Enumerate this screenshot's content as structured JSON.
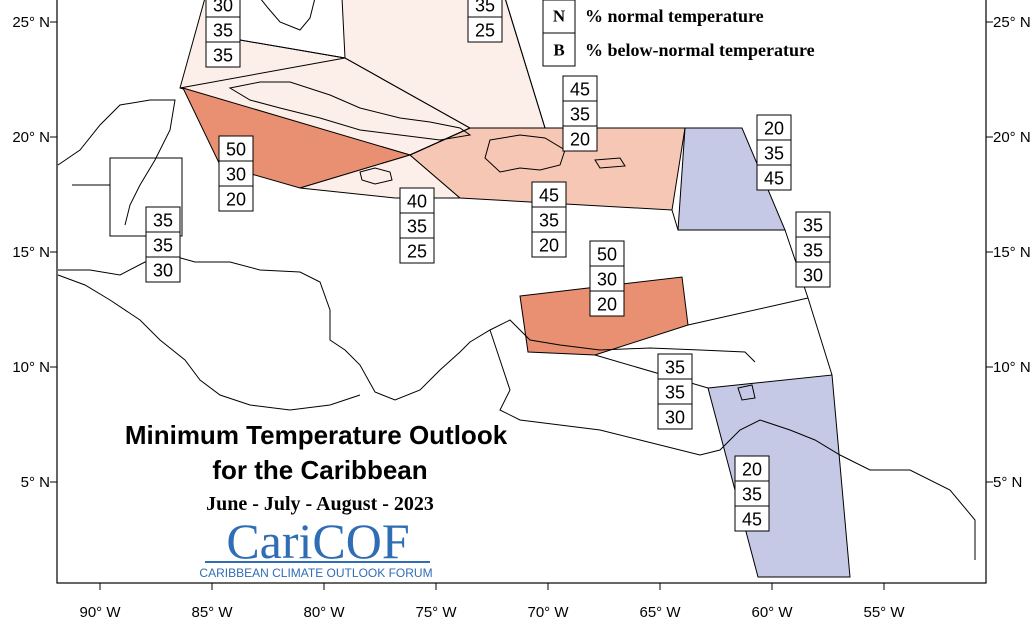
{
  "title_line1": "Minimum Temperature Outlook",
  "title_line2": "for the Caribbean",
  "period": "June - July - August - 2023",
  "logo": {
    "name": "CariCOF",
    "tagline": "CARIBBEAN CLIMATE OUTLOOK FORUM"
  },
  "legend": [
    {
      "key": "N",
      "text": "% normal temperature"
    },
    {
      "key": "B",
      "text": "% below-normal temperature"
    }
  ],
  "lat_labels": [
    "25° N",
    "20° N",
    "15° N",
    "10° N",
    "5° N"
  ],
  "lon_labels": [
    "90° W",
    "85° W",
    "80° W",
    "75° W",
    "70° W",
    "65° W",
    "60° W",
    "55° W"
  ],
  "colors": {
    "above_50": "#e98f72",
    "above_45": "#f6c7b4",
    "above_40": "#fbe2d8",
    "above_35": "#fcefe9",
    "below_45": "#c5c9e5",
    "outline": "#000000"
  },
  "regions": [
    {
      "name": "bahamas-north",
      "values": [
        "30",
        "35",
        "35"
      ]
    },
    {
      "name": "turks-caicos",
      "values": [
        "35",
        "25"
      ]
    },
    {
      "name": "greater-antilles-east",
      "values": [
        "45",
        "35",
        "20"
      ]
    },
    {
      "name": "leeward-islands",
      "values": [
        "20",
        "35",
        "45"
      ]
    },
    {
      "name": "western-cuba",
      "values": [
        "50",
        "30",
        "20"
      ]
    },
    {
      "name": "jamaica",
      "values": [
        "40",
        "35",
        "25"
      ]
    },
    {
      "name": "hispaniola",
      "values": [
        "45",
        "35",
        "20"
      ]
    },
    {
      "name": "belize",
      "values": [
        "35",
        "35",
        "30"
      ]
    },
    {
      "name": "windward-islands",
      "values": [
        "35",
        "35",
        "30"
      ]
    },
    {
      "name": "abc-islands",
      "values": [
        "50",
        "30",
        "20"
      ]
    },
    {
      "name": "trinidad",
      "values": [
        "35",
        "35",
        "30"
      ]
    },
    {
      "name": "guianas",
      "values": [
        "20",
        "35",
        "45"
      ]
    }
  ]
}
